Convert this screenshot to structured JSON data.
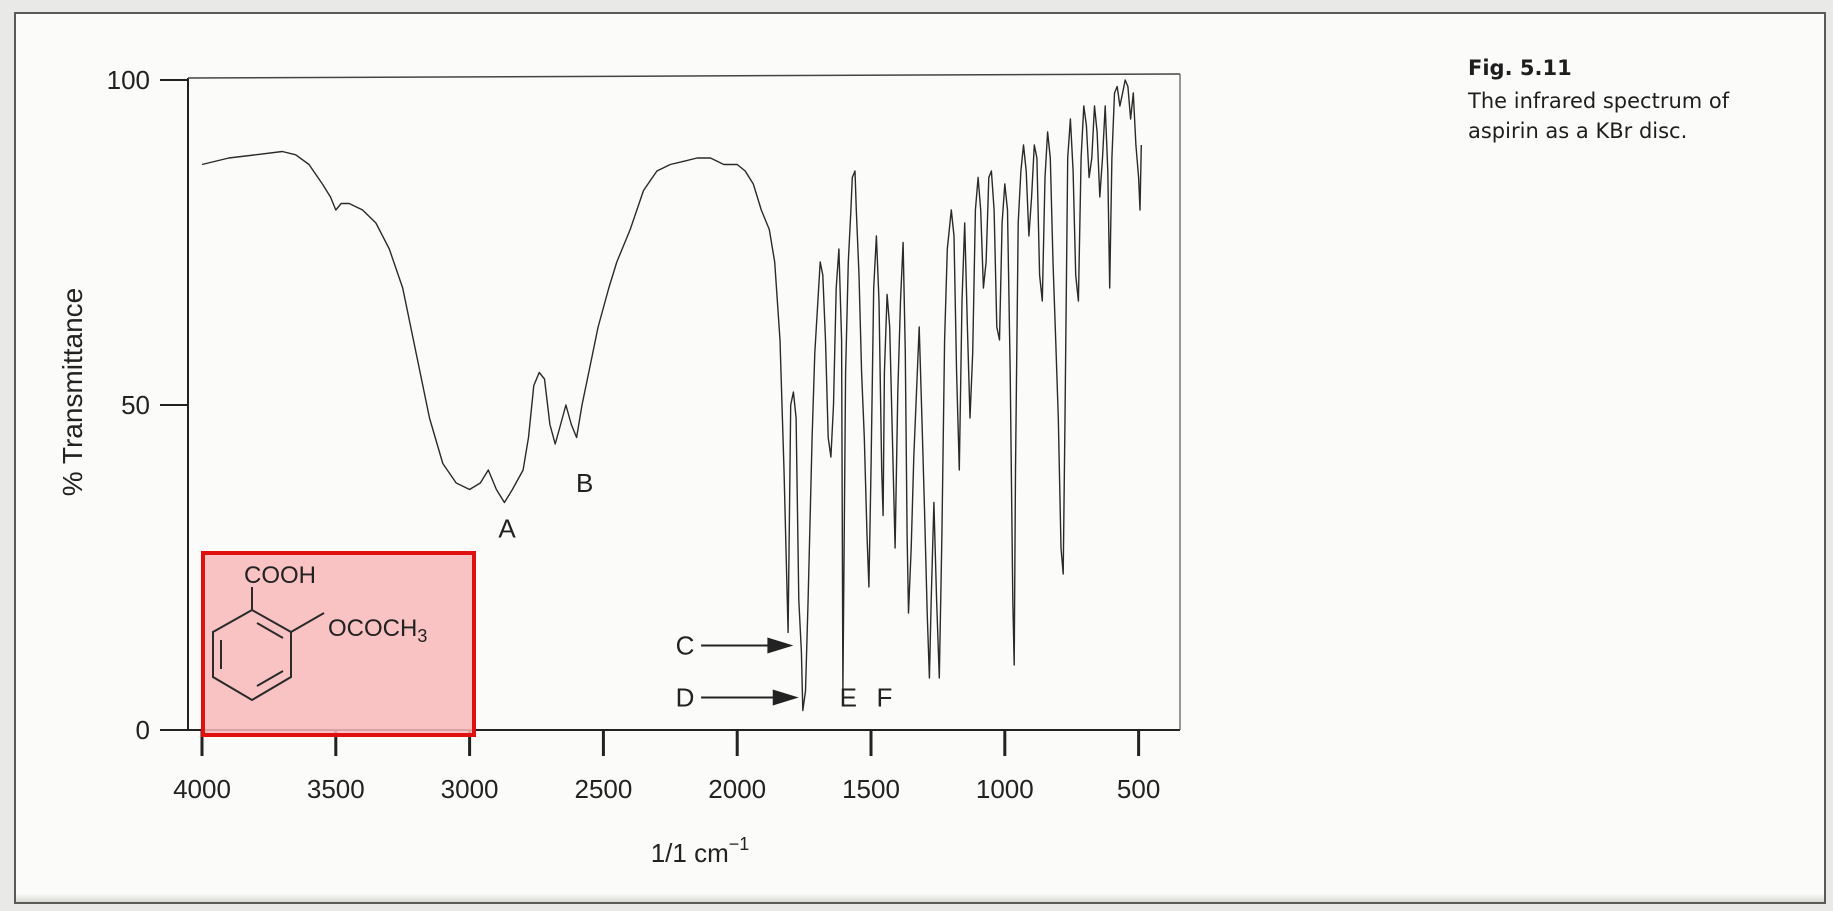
{
  "figure": {
    "number": "Fig. 5.11",
    "caption": "The infrared spectrum of aspirin as a KBr disc."
  },
  "colors": {
    "trace": "#2a2a2a",
    "highlight_fill": "#f7b9b9",
    "highlight_border": "#e01010",
    "arrow": "#222222"
  },
  "chart_data": {
    "type": "line",
    "title": "",
    "xlabel": "1/1 cm",
    "xlabel_superscript": "−1",
    "ylabel": "% Transmittance",
    "xlim": [
      4000,
      450
    ],
    "ylim": [
      0,
      100
    ],
    "x_reversed": true,
    "grid": false,
    "xticks": [
      4000,
      3500,
      3000,
      2500,
      2000,
      1500,
      1000,
      500
    ],
    "yticks": [
      0,
      50,
      100
    ],
    "series": [
      {
        "points": [
          [
            4000,
            87
          ],
          [
            3900,
            88
          ],
          [
            3800,
            88.5
          ],
          [
            3700,
            89
          ],
          [
            3650,
            88.5
          ],
          [
            3600,
            87
          ],
          [
            3550,
            84
          ],
          [
            3520,
            82
          ],
          [
            3500,
            80
          ],
          [
            3480,
            81
          ],
          [
            3450,
            81
          ],
          [
            3400,
            80
          ],
          [
            3350,
            78
          ],
          [
            3300,
            74
          ],
          [
            3250,
            68
          ],
          [
            3200,
            58
          ],
          [
            3150,
            48
          ],
          [
            3100,
            41
          ],
          [
            3050,
            38
          ],
          [
            3000,
            37
          ],
          [
            2960,
            38
          ],
          [
            2930,
            40
          ],
          [
            2900,
            37
          ],
          [
            2870,
            35
          ],
          [
            2840,
            37
          ],
          [
            2800,
            40
          ],
          [
            2780,
            45
          ],
          [
            2760,
            53
          ],
          [
            2740,
            55
          ],
          [
            2720,
            54
          ],
          [
            2700,
            47
          ],
          [
            2680,
            44
          ],
          [
            2660,
            47
          ],
          [
            2640,
            50
          ],
          [
            2620,
            47
          ],
          [
            2600,
            45
          ],
          [
            2580,
            50
          ],
          [
            2560,
            54
          ],
          [
            2520,
            62
          ],
          [
            2480,
            68
          ],
          [
            2450,
            72
          ],
          [
            2400,
            77
          ],
          [
            2350,
            83
          ],
          [
            2300,
            86
          ],
          [
            2250,
            87
          ],
          [
            2200,
            87.5
          ],
          [
            2150,
            88
          ],
          [
            2100,
            88
          ],
          [
            2050,
            87
          ],
          [
            2000,
            87
          ],
          [
            1970,
            86
          ],
          [
            1940,
            84
          ],
          [
            1910,
            80
          ],
          [
            1880,
            77
          ],
          [
            1860,
            72
          ],
          [
            1840,
            60
          ],
          [
            1825,
            40
          ],
          [
            1810,
            15
          ],
          [
            1800,
            50
          ],
          [
            1790,
            52
          ],
          [
            1780,
            48
          ],
          [
            1770,
            20
          ],
          [
            1760,
            12
          ],
          [
            1755,
            3
          ],
          [
            1745,
            6
          ],
          [
            1735,
            20
          ],
          [
            1720,
            45
          ],
          [
            1710,
            58
          ],
          [
            1700,
            65
          ],
          [
            1690,
            72
          ],
          [
            1680,
            70
          ],
          [
            1670,
            60
          ],
          [
            1660,
            45
          ],
          [
            1650,
            42
          ],
          [
            1640,
            50
          ],
          [
            1630,
            68
          ],
          [
            1620,
            74
          ],
          [
            1610,
            60
          ],
          [
            1605,
            6
          ],
          [
            1595,
            55
          ],
          [
            1585,
            72
          ],
          [
            1575,
            80
          ],
          [
            1570,
            85
          ],
          [
            1560,
            86
          ],
          [
            1555,
            80
          ],
          [
            1545,
            70
          ],
          [
            1535,
            55
          ],
          [
            1525,
            45
          ],
          [
            1515,
            30
          ],
          [
            1508,
            22
          ],
          [
            1500,
            40
          ],
          [
            1490,
            68
          ],
          [
            1480,
            76
          ],
          [
            1470,
            66
          ],
          [
            1460,
            40
          ],
          [
            1455,
            33
          ],
          [
            1450,
            55
          ],
          [
            1440,
            67
          ],
          [
            1430,
            62
          ],
          [
            1420,
            45
          ],
          [
            1410,
            28
          ],
          [
            1400,
            52
          ],
          [
            1390,
            66
          ],
          [
            1380,
            75
          ],
          [
            1372,
            58
          ],
          [
            1365,
            30
          ],
          [
            1360,
            18
          ],
          [
            1350,
            28
          ],
          [
            1340,
            42
          ],
          [
            1330,
            52
          ],
          [
            1320,
            62
          ],
          [
            1310,
            48
          ],
          [
            1300,
            34
          ],
          [
            1290,
            18
          ],
          [
            1282,
            8
          ],
          [
            1275,
            20
          ],
          [
            1265,
            35
          ],
          [
            1255,
            20
          ],
          [
            1245,
            8
          ],
          [
            1235,
            30
          ],
          [
            1225,
            60
          ],
          [
            1215,
            74
          ],
          [
            1200,
            80
          ],
          [
            1190,
            76
          ],
          [
            1180,
            55
          ],
          [
            1170,
            40
          ],
          [
            1160,
            66
          ],
          [
            1150,
            78
          ],
          [
            1140,
            62
          ],
          [
            1130,
            48
          ],
          [
            1120,
            58
          ],
          [
            1110,
            80
          ],
          [
            1100,
            85
          ],
          [
            1090,
            80
          ],
          [
            1080,
            68
          ],
          [
            1070,
            72
          ],
          [
            1060,
            85
          ],
          [
            1050,
            86
          ],
          [
            1040,
            80
          ],
          [
            1030,
            62
          ],
          [
            1020,
            60
          ],
          [
            1010,
            78
          ],
          [
            1000,
            84
          ],
          [
            990,
            80
          ],
          [
            980,
            55
          ],
          [
            970,
            20
          ],
          [
            965,
            10
          ],
          [
            960,
            40
          ],
          [
            950,
            78
          ],
          [
            940,
            86
          ],
          [
            930,
            90
          ],
          [
            920,
            86
          ],
          [
            910,
            76
          ],
          [
            900,
            82
          ],
          [
            890,
            90
          ],
          [
            880,
            88
          ],
          [
            870,
            70
          ],
          [
            860,
            66
          ],
          [
            850,
            85
          ],
          [
            840,
            92
          ],
          [
            830,
            88
          ],
          [
            820,
            72
          ],
          [
            810,
            60
          ],
          [
            800,
            48
          ],
          [
            790,
            28
          ],
          [
            782,
            24
          ],
          [
            775,
            48
          ],
          [
            765,
            88
          ],
          [
            755,
            94
          ],
          [
            745,
            86
          ],
          [
            735,
            70
          ],
          [
            725,
            66
          ],
          [
            715,
            88
          ],
          [
            705,
            96
          ],
          [
            695,
            93
          ],
          [
            685,
            85
          ],
          [
            675,
            88
          ],
          [
            665,
            96
          ],
          [
            655,
            92
          ],
          [
            645,
            82
          ],
          [
            635,
            88
          ],
          [
            625,
            96
          ],
          [
            615,
            86
          ],
          [
            608,
            68
          ],
          [
            600,
            88
          ],
          [
            590,
            98
          ],
          [
            580,
            99
          ],
          [
            570,
            96
          ],
          [
            560,
            98
          ],
          [
            550,
            100
          ],
          [
            540,
            99
          ],
          [
            530,
            94
          ],
          [
            520,
            98
          ],
          [
            510,
            90
          ],
          [
            500,
            85
          ],
          [
            495,
            80
          ],
          [
            490,
            90
          ]
        ]
      }
    ],
    "annotations": [
      {
        "label": "A",
        "x": 2860,
        "y": 31
      },
      {
        "label": "B",
        "x": 2570,
        "y": 38
      },
      {
        "label": "C",
        "x": 1790,
        "y": 13,
        "arrow": true,
        "label_x": 2150
      },
      {
        "label": "D",
        "x": 1770,
        "y": 5,
        "arrow": true,
        "label_x": 2150
      },
      {
        "label": "E",
        "x": 1585,
        "y": 5
      },
      {
        "label": "F",
        "x": 1450,
        "y": 5
      }
    ],
    "structure": {
      "group_top": "COOH",
      "group_side": "OCOCH",
      "group_side_subscript": "3"
    }
  }
}
